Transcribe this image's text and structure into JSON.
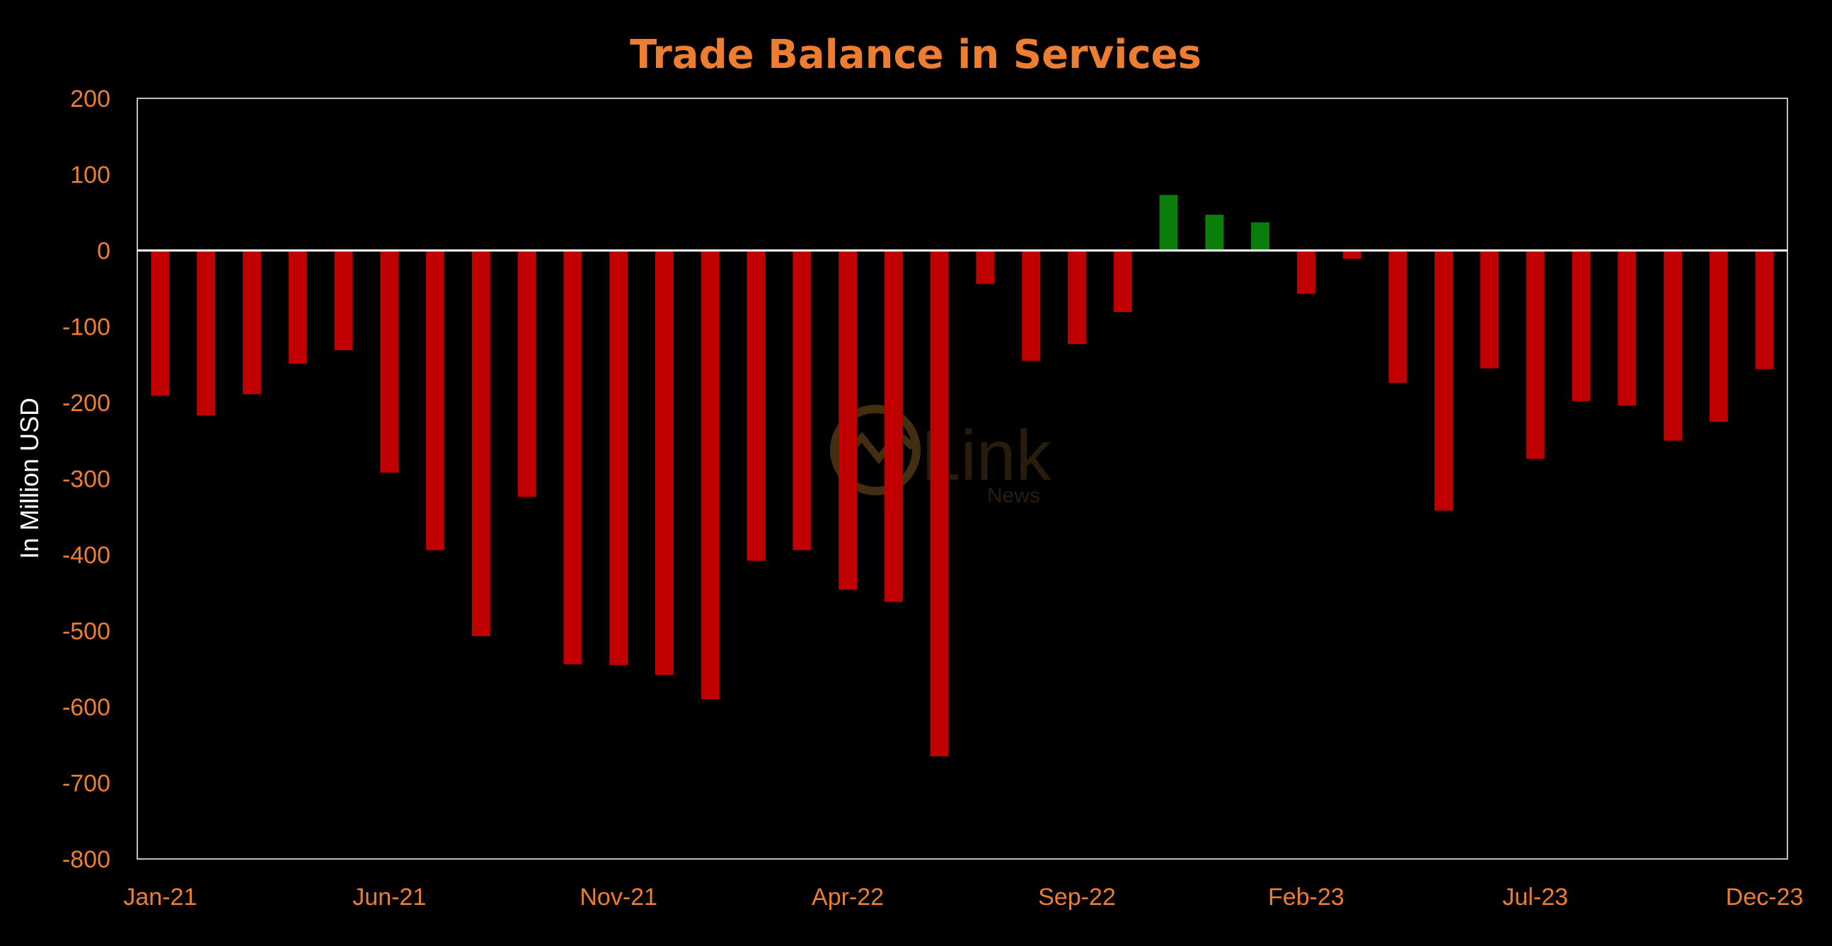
{
  "chart_data": {
    "type": "bar",
    "title": "Trade Balance in Services",
    "xlabel": "",
    "ylabel": "In Million USD",
    "ylim": [
      -800,
      200
    ],
    "yticks": [
      200,
      100,
      0,
      -100,
      -200,
      -300,
      -400,
      -500,
      -600,
      -700,
      -800
    ],
    "x_tick_labels": [
      "Jan-21",
      "Jun-21",
      "Nov-21",
      "Apr-22",
      "Sep-22",
      "Feb-23",
      "Jul-23",
      "Dec-23"
    ],
    "categories": [
      "Jan-21",
      "Feb-21",
      "Mar-21",
      "Apr-21",
      "May-21",
      "Jun-21",
      "Jul-21",
      "Aug-21",
      "Sep-21",
      "Oct-21",
      "Nov-21",
      "Dec-21",
      "Jan-22",
      "Feb-22",
      "Mar-22",
      "Apr-22",
      "May-22",
      "Jun-22",
      "Jul-22",
      "Aug-22",
      "Sep-22",
      "Oct-22",
      "Nov-22",
      "Dec-22",
      "Jan-23",
      "Feb-23",
      "Mar-23",
      "Apr-23",
      "May-23",
      "Jun-23",
      "Jul-23",
      "Aug-23",
      "Sep-23",
      "Oct-23",
      "Nov-23",
      "Dec-23"
    ],
    "values": [
      -191,
      -217,
      -189,
      -149,
      -131,
      -292,
      -394,
      -507,
      -324,
      -544,
      -545,
      -558,
      -590,
      -408,
      -394,
      -446,
      -462,
      -665,
      -44,
      -145,
      -123,
      -81,
      73,
      47,
      37,
      -57,
      -11,
      -174,
      -342,
      -155,
      -274,
      -198,
      -204,
      -250,
      -225,
      -156
    ],
    "colors": {
      "negative": "#C00000",
      "positive": "#0A7D0A",
      "zero_line": "#FFFFFF",
      "frame": "#BFBFBF",
      "text": "#ED7D31"
    },
    "grid": false,
    "legend": "none"
  },
  "watermark": {
    "text": "Link",
    "subtext": "News",
    "icon": "chart-logo-icon"
  }
}
